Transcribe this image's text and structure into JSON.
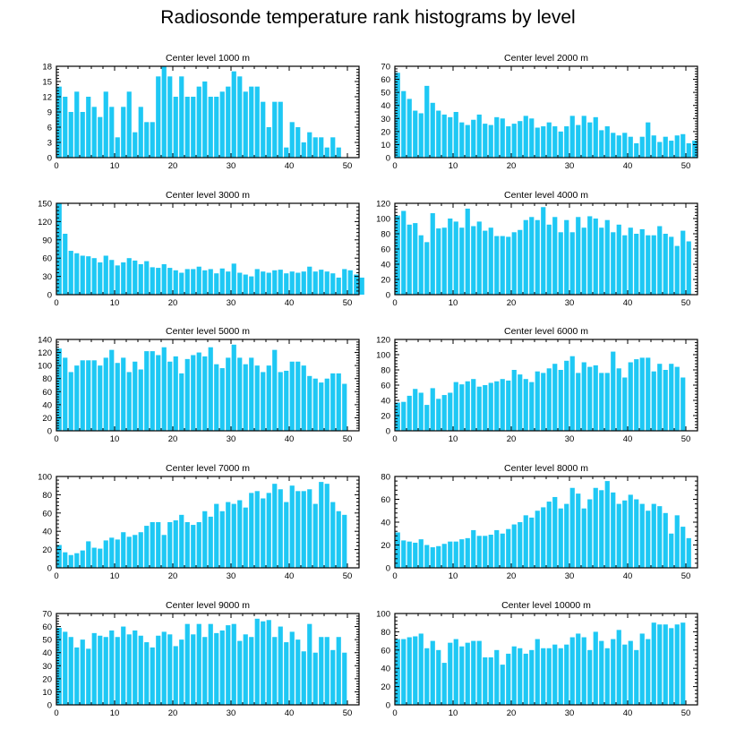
{
  "title": "Radiosonde temperature rank histograms by level",
  "colors": {
    "bar": "#1ec8f4",
    "axis": "#000000",
    "background": "#ffffff"
  },
  "chart_data": [
    {
      "type": "bar",
      "title": "Center level 1000 m",
      "xlim": [
        0,
        52
      ],
      "ylim": [
        0,
        18
      ],
      "xticks": [
        0,
        10,
        20,
        30,
        40,
        50
      ],
      "yticks": [
        0,
        3,
        6,
        9,
        12,
        15,
        18
      ],
      "values": [
        14,
        12,
        9,
        13,
        9,
        12,
        10,
        8,
        13,
        10,
        4,
        10,
        13,
        5,
        10,
        7,
        7,
        16,
        18,
        16,
        12,
        16,
        12,
        12,
        14,
        15,
        12,
        12,
        13,
        14,
        17,
        16,
        13,
        14,
        14,
        11,
        6,
        11,
        11,
        2,
        7,
        6,
        3,
        5,
        4,
        4,
        2,
        4,
        2
      ]
    },
    {
      "type": "bar",
      "title": "Center level 2000 m",
      "xlim": [
        0,
        52
      ],
      "ylim": [
        0,
        70
      ],
      "xticks": [
        0,
        10,
        20,
        30,
        40,
        50
      ],
      "yticks": [
        0,
        10,
        20,
        30,
        40,
        50,
        60,
        70
      ],
      "values": [
        65,
        51,
        45,
        36,
        34,
        55,
        42,
        36,
        33,
        31,
        35,
        27,
        25,
        29,
        33,
        26,
        25,
        31,
        30,
        24,
        26,
        28,
        32,
        30,
        23,
        24,
        27,
        24,
        20,
        24,
        32,
        25,
        32,
        27,
        31,
        21,
        24,
        19,
        17,
        19,
        16,
        11,
        16,
        27,
        17,
        12,
        16,
        13,
        17,
        18,
        11,
        13
      ]
    },
    {
      "type": "bar",
      "title": "Center level 3000 m",
      "xlim": [
        0,
        52
      ],
      "ylim": [
        0,
        150
      ],
      "xticks": [
        0,
        10,
        20,
        30,
        40,
        50
      ],
      "yticks": [
        0,
        30,
        60,
        90,
        120,
        150
      ],
      "values": [
        150,
        100,
        72,
        68,
        64,
        63,
        60,
        53,
        64,
        57,
        48,
        53,
        60,
        56,
        50,
        55,
        45,
        44,
        50,
        44,
        40,
        36,
        42,
        42,
        46,
        40,
        42,
        35,
        43,
        38,
        51,
        36,
        33,
        30,
        42,
        38,
        36,
        40,
        41,
        35,
        38,
        36,
        38,
        46,
        38,
        41,
        38,
        35,
        28,
        42,
        40,
        33,
        28
      ]
    },
    {
      "type": "bar",
      "title": "Center level 4000 m",
      "xlim": [
        0,
        52
      ],
      "ylim": [
        0,
        120
      ],
      "xticks": [
        0,
        10,
        20,
        30,
        40,
        50
      ],
      "yticks": [
        0,
        20,
        40,
        60,
        80,
        100,
        120
      ],
      "values": [
        104,
        110,
        92,
        94,
        78,
        69,
        107,
        87,
        88,
        100,
        96,
        88,
        113,
        90,
        96,
        84,
        88,
        77,
        77,
        76,
        82,
        85,
        98,
        102,
        98,
        115,
        92,
        102,
        82,
        98,
        82,
        102,
        88,
        103,
        100,
        88,
        98,
        82,
        92,
        78,
        88,
        80,
        86,
        78,
        78,
        90,
        80,
        76,
        64,
        84,
        70
      ]
    },
    {
      "type": "bar",
      "title": "Center level 5000 m",
      "xlim": [
        0,
        52
      ],
      "ylim": [
        0,
        140
      ],
      "xticks": [
        0,
        10,
        20,
        30,
        40,
        50
      ],
      "yticks": [
        0,
        20,
        40,
        60,
        80,
        100,
        120,
        140
      ],
      "values": [
        126,
        112,
        90,
        100,
        108,
        108,
        108,
        100,
        112,
        124,
        104,
        112,
        90,
        106,
        94,
        122,
        122,
        116,
        128,
        106,
        114,
        88,
        110,
        116,
        120,
        114,
        128,
        102,
        96,
        112,
        132,
        112,
        102,
        112,
        100,
        90,
        100,
        124,
        90,
        92,
        106,
        106,
        100,
        84,
        80,
        74,
        80,
        88,
        88,
        72
      ]
    },
    {
      "type": "bar",
      "title": "Center level 6000 m",
      "xlim": [
        0,
        52
      ],
      "ylim": [
        0,
        120
      ],
      "xticks": [
        0,
        10,
        20,
        30,
        40,
        50
      ],
      "yticks": [
        0,
        20,
        40,
        60,
        80,
        100,
        120
      ],
      "values": [
        37,
        38,
        46,
        55,
        50,
        34,
        56,
        42,
        47,
        50,
        64,
        61,
        65,
        68,
        58,
        60,
        63,
        65,
        68,
        66,
        80,
        74,
        68,
        64,
        78,
        76,
        82,
        88,
        80,
        92,
        98,
        76,
        90,
        84,
        86,
        76,
        76,
        104,
        82,
        70,
        90,
        94,
        96,
        96,
        78,
        88,
        80,
        88,
        84,
        70
      ]
    },
    {
      "type": "bar",
      "title": "Center level 7000 m",
      "xlim": [
        0,
        52
      ],
      "ylim": [
        0,
        100
      ],
      "xticks": [
        0,
        10,
        20,
        30,
        40,
        50
      ],
      "yticks": [
        0,
        20,
        40,
        60,
        80,
        100
      ],
      "values": [
        25,
        17,
        14,
        16,
        19,
        29,
        22,
        21,
        30,
        33,
        31,
        39,
        34,
        36,
        39,
        46,
        50,
        50,
        36,
        50,
        52,
        58,
        50,
        47,
        50,
        62,
        56,
        70,
        62,
        72,
        70,
        74,
        66,
        82,
        84,
        76,
        82,
        92,
        86,
        72,
        90,
        84,
        84,
        86,
        70,
        94,
        92,
        72,
        62,
        58
      ]
    },
    {
      "type": "bar",
      "title": "Center level 8000 m",
      "xlim": [
        0,
        52
      ],
      "ylim": [
        0,
        80
      ],
      "xticks": [
        0,
        10,
        20,
        30,
        40,
        50
      ],
      "yticks": [
        0,
        20,
        40,
        60,
        80
      ],
      "values": [
        31,
        24,
        23,
        22,
        25,
        20,
        18,
        19,
        21,
        23,
        23,
        25,
        26,
        33,
        28,
        28,
        29,
        33,
        30,
        34,
        38,
        40,
        46,
        44,
        50,
        53,
        58,
        62,
        52,
        56,
        70,
        65,
        52,
        60,
        70,
        68,
        76,
        66,
        56,
        59,
        64,
        60,
        56,
        50,
        56,
        54,
        48,
        30,
        46,
        36,
        26
      ]
    },
    {
      "type": "bar",
      "title": "Center level 9000 m",
      "xlim": [
        0,
        52
      ],
      "ylim": [
        0,
        70
      ],
      "xticks": [
        0,
        10,
        20,
        30,
        40,
        50
      ],
      "yticks": [
        0,
        10,
        20,
        30,
        40,
        50,
        60,
        70
      ],
      "values": [
        59,
        56,
        52,
        44,
        50,
        43,
        55,
        53,
        52,
        57,
        52,
        60,
        54,
        57,
        53,
        48,
        44,
        53,
        56,
        54,
        45,
        50,
        62,
        54,
        62,
        52,
        62,
        55,
        57,
        61,
        62,
        49,
        54,
        52,
        66,
        64,
        65,
        52,
        60,
        48,
        56,
        50,
        41,
        62,
        40,
        52,
        52,
        42,
        52,
        40
      ]
    },
    {
      "type": "bar",
      "title": "Center level 10000 m",
      "xlim": [
        0,
        52
      ],
      "ylim": [
        0,
        100
      ],
      "xticks": [
        0,
        10,
        20,
        30,
        40,
        50
      ],
      "yticks": [
        0,
        20,
        40,
        60,
        80,
        100
      ],
      "values": [
        72,
        72,
        74,
        75,
        78,
        62,
        70,
        60,
        46,
        68,
        72,
        64,
        68,
        70,
        70,
        52,
        52,
        60,
        44,
        56,
        64,
        62,
        56,
        60,
        72,
        62,
        62,
        66,
        62,
        66,
        74,
        78,
        74,
        60,
        80,
        70,
        62,
        72,
        82,
        66,
        70,
        60,
        78,
        72,
        90,
        88,
        88,
        84,
        88,
        90
      ]
    }
  ]
}
